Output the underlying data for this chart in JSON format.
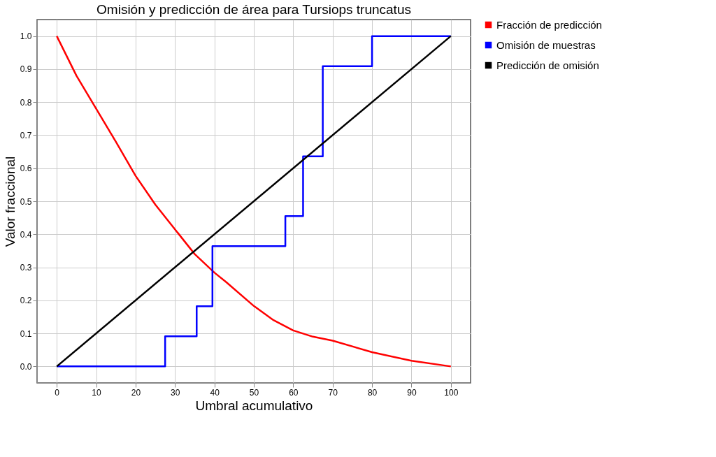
{
  "chart_data": {
    "type": "line",
    "title": "Omisión y predicción de área para Tursiops truncatus",
    "xlabel": "Umbral acumulativo",
    "ylabel": "Valor fraccional",
    "series": [
      {
        "name": "Fracción de predicción",
        "color": "#ff0000",
        "x": [
          0,
          5,
          10,
          15,
          20,
          25,
          30,
          35,
          40,
          43,
          50,
          55,
          60,
          65,
          70,
          80,
          90,
          100
        ],
        "values": [
          1.0,
          0.88,
          0.78,
          0.68,
          0.577,
          0.49,
          0.415,
          0.34,
          0.284,
          0.255,
          0.183,
          0.14,
          0.109,
          0.09,
          0.078,
          0.043,
          0.017,
          0.0
        ]
      },
      {
        "name": "Omisión de muestras",
        "color": "#0000ff",
        "type": "step",
        "x": [
          0,
          27.5,
          35.5,
          39.5,
          58,
          62.5,
          67.5,
          80,
          100
        ],
        "values": [
          0.0,
          0.091,
          0.182,
          0.364,
          0.455,
          0.636,
          0.909,
          1.0,
          1.0
        ]
      },
      {
        "name": "Predicción de omisión",
        "color": "#000000",
        "x": [
          0,
          100
        ],
        "values": [
          0.0,
          1.0
        ]
      }
    ],
    "xlim": [
      -5,
      105
    ],
    "xticks": [
      0,
      10,
      20,
      30,
      40,
      50,
      60,
      70,
      80,
      90,
      100
    ],
    "ylim": [
      -0.05,
      1.05
    ],
    "yticks": [
      {
        "value": 0,
        "label": "0.0"
      },
      0.1,
      0.2,
      0.3,
      0.4,
      0.5,
      0.6,
      0.7,
      0.8,
      0.9,
      {
        "value": 1,
        "label": "1.0"
      }
    ],
    "grid": true,
    "legend": "top right",
    "marker": "none",
    "line_style": "solid"
  }
}
